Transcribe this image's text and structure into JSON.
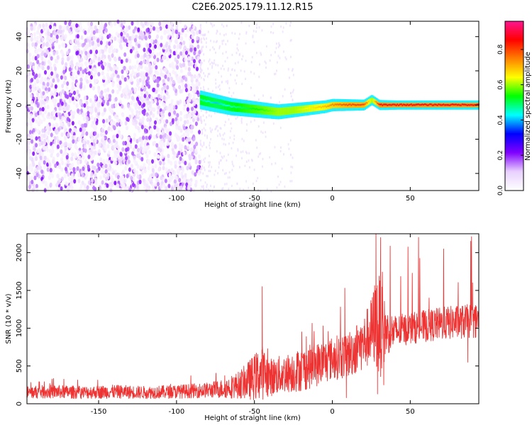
{
  "title": "C2E6.2025.179.11.12.R15",
  "chart_data": [
    {
      "type": "heatmap",
      "xlabel": "Height of straight line (km)",
      "ylabel": "Frequency (Hz)",
      "xlim": [
        -196,
        94
      ],
      "ylim": [
        -50,
        49
      ],
      "xticks": [
        -150,
        -100,
        -50,
        0,
        50
      ],
      "yticks": [
        -40,
        -20,
        0,
        20,
        40
      ],
      "colorbar": {
        "label": "Normalized spectral amplitude",
        "range": [
          0.0,
          0.96
        ],
        "ticks": [
          0.0,
          0.2,
          0.4,
          0.6,
          0.8
        ],
        "colors": [
          "#ffffff",
          "#e8d0ff",
          "#8000ff",
          "#0000ff",
          "#00ffff",
          "#00ff00",
          "#ffff00",
          "#ff8000",
          "#ff0000",
          "#ff1493"
        ]
      },
      "noise_region_x": [
        -196,
        -85
      ],
      "signal_trace": {
        "x": [
          -85,
          -75,
          -65,
          -55,
          -45,
          -35,
          -25,
          -15,
          -5,
          0,
          10,
          20,
          25,
          30,
          40,
          50,
          60,
          70,
          80,
          94
        ],
        "y": [
          3,
          1,
          -1,
          -2,
          -3,
          -4,
          -3,
          -2,
          -1,
          0,
          0,
          0,
          3,
          0,
          0,
          0,
          0,
          0,
          0,
          0
        ],
        "amplitude": [
          0.45,
          0.4,
          0.45,
          0.5,
          0.55,
          0.6,
          0.6,
          0.65,
          0.7,
          0.75,
          0.8,
          0.8,
          0.6,
          0.85,
          0.85,
          0.85,
          0.85,
          0.85,
          0.85,
          0.85
        ]
      }
    },
    {
      "type": "line",
      "xlabel": "Height of straight line (km)",
      "ylabel": "SNR (10 * v/v)",
      "xlim": [
        -196,
        94
      ],
      "ylim": [
        0,
        2250
      ],
      "xticks": [
        -150,
        -100,
        -50,
        0,
        50
      ],
      "yticks": [
        0,
        500,
        1000,
        1500,
        2000
      ],
      "series": [
        {
          "color": "#ee3333",
          "x": [
            -196,
            -180,
            -160,
            -140,
            -120,
            -100,
            -90,
            -80,
            -70,
            -60,
            -55,
            -50,
            -45,
            -40,
            -30,
            -20,
            -10,
            0,
            10,
            20,
            25,
            28,
            30,
            35,
            40,
            50,
            60,
            70,
            80,
            94
          ],
          "y": [
            150,
            160,
            150,
            160,
            150,
            160,
            170,
            180,
            200,
            250,
            300,
            350,
            420,
            350,
            400,
            450,
            520,
            600,
            650,
            800,
            950,
            1100,
            1000,
            950,
            950,
            1000,
            1030,
            1060,
            1080,
            1100
          ],
          "noise": [
            0.35,
            0.35,
            0.35,
            0.35,
            0.35,
            0.35,
            0.35,
            0.35,
            0.4,
            0.45,
            0.5,
            0.55,
            0.55,
            0.45,
            0.4,
            0.4,
            0.35,
            0.3,
            0.3,
            0.28,
            0.3,
            0.35,
            0.45,
            0.2,
            0.15,
            0.13,
            0.13,
            0.13,
            0.13,
            0.13
          ],
          "spikes": [
            {
              "x": -45,
              "y": 1550
            },
            {
              "x": 8,
              "y": 1530
            },
            {
              "x": 28,
              "y": 2250
            },
            {
              "x": 31,
              "y": 2200
            },
            {
              "x": 90,
              "y": 1600
            }
          ],
          "dips": [
            {
              "x": 9,
              "y": 80
            },
            {
              "x": 29,
              "y": 130
            },
            {
              "x": 33,
              "y": 250
            },
            {
              "x": 87,
              "y": 550
            }
          ]
        }
      ]
    }
  ]
}
